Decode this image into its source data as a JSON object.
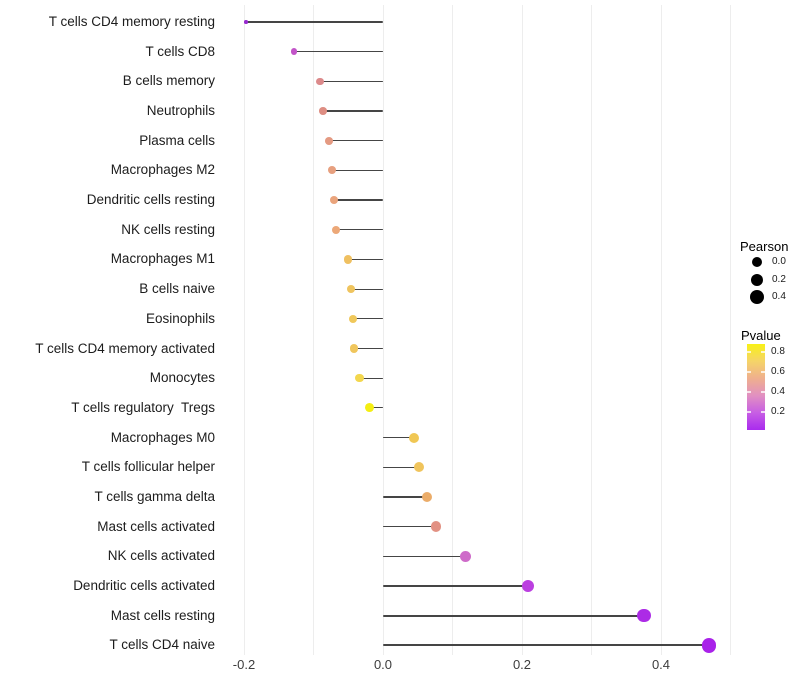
{
  "chart_data": {
    "type": "scatter",
    "subtype": "lollipop",
    "orientation": "horizontal",
    "title": "",
    "xlabel": "",
    "ylabel": "",
    "xlim": [
      -0.2335,
      0.5035
    ],
    "x_ticks": [
      -0.2,
      0.0,
      0.2,
      0.4
    ],
    "x_tick_labels": [
      "-0.2",
      "0.0",
      "0.2",
      "0.4"
    ],
    "x_gridlines": [
      -0.2,
      -0.1,
      0.0,
      0.1,
      0.2,
      0.3,
      0.4,
      0.5
    ],
    "grid": "vertical-only",
    "grid_color": "#EDEDED",
    "stem_color": "#454545",
    "baseline_x": 0.0,
    "rows": [
      {
        "label": "T cells CD4 memory resting",
        "pearson": -0.197,
        "color": "#9729CF"
      },
      {
        "label": "T cells CD8",
        "pearson": -0.128,
        "color": "#C254C8"
      },
      {
        "label": "B cells memory",
        "pearson": -0.091,
        "color": "#DC8A8B"
      },
      {
        "label": "Neutrophils",
        "pearson": -0.086,
        "color": "#DE8E83"
      },
      {
        "label": "Plasma cells",
        "pearson": -0.078,
        "color": "#E49A82"
      },
      {
        "label": "Macrophages M2",
        "pearson": -0.073,
        "color": "#E7A07F"
      },
      {
        "label": "Dendritic cells resting",
        "pearson": -0.071,
        "color": "#EAA47C"
      },
      {
        "label": "NK cells resting",
        "pearson": -0.068,
        "color": "#ECA878"
      },
      {
        "label": "Macrophages M1",
        "pearson": -0.05,
        "color": "#EFC061"
      },
      {
        "label": "B cells naive",
        "pearson": -0.046,
        "color": "#EFC45E"
      },
      {
        "label": "Eosinophils",
        "pearson": -0.043,
        "color": "#F0C85B"
      },
      {
        "label": "T cells CD4 memory activated",
        "pearson": -0.042,
        "color": "#F0C65D"
      },
      {
        "label": "Monocytes",
        "pearson": -0.034,
        "color": "#F3D74E"
      },
      {
        "label": "T cells regulatory  Tregs",
        "pearson": -0.019,
        "color": "#F4EE12"
      },
      {
        "label": "Macrophages M0",
        "pearson": 0.045,
        "color": "#F0C754"
      },
      {
        "label": "T cells follicular helper",
        "pearson": 0.052,
        "color": "#F0C45C"
      },
      {
        "label": "T cells gamma delta",
        "pearson": 0.063,
        "color": "#EBAC69"
      },
      {
        "label": "Mast cells activated",
        "pearson": 0.076,
        "color": "#E29183"
      },
      {
        "label": "NK cells activated",
        "pearson": 0.118,
        "color": "#CE6BC9"
      },
      {
        "label": "Dendritic cells activated",
        "pearson": 0.209,
        "color": "#BB3FE0"
      },
      {
        "label": "Mast cells resting",
        "pearson": 0.376,
        "color": "#AC2BE6"
      },
      {
        "label": "T cells CD4 naive",
        "pearson": 0.469,
        "color": "#A922E9"
      }
    ],
    "legends": {
      "size": {
        "title": "Pearson",
        "labels": [
          "0.0",
          "0.2",
          "0.4"
        ],
        "values": [
          0.0,
          0.2,
          0.4
        ],
        "dot_color": "#000000"
      },
      "color": {
        "title": "Pvalue",
        "tick_labels": [
          "0.8",
          "0.6",
          "0.4",
          "0.2"
        ],
        "gradient_stops": [
          "#F8F116",
          "#F5D468",
          "#EFAF8E",
          "#E190C1",
          "#C75EE4",
          "#A92BEE"
        ]
      }
    }
  }
}
